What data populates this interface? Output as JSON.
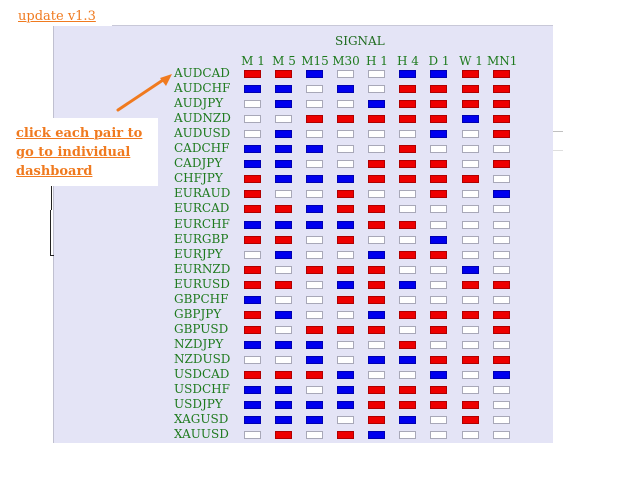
{
  "update_link": "update v1.3",
  "signal_title": "SIGNAL",
  "callout": {
    "lines": [
      "click each pair to",
      "go to individual",
      "dashboard"
    ]
  },
  "colors": {
    "buy": "#0000ee",
    "sell": "#ee0000",
    "neutral": "#ffffff",
    "panel_bg": "#e4e4f6",
    "label_green": "#1e7a1e",
    "accent_orange": "#f07a1f"
  },
  "timeframes": [
    "M 1",
    "M 5",
    "M15",
    "M30",
    "H 1",
    "H 4",
    "D 1",
    "W 1",
    "MN1"
  ],
  "pairs": [
    {
      "name": "AUDCAD",
      "signals": [
        "sell",
        "sell",
        "buy",
        "neutral",
        "neutral",
        "buy",
        "buy",
        "sell",
        "sell"
      ]
    },
    {
      "name": "AUDCHF",
      "signals": [
        "buy",
        "buy",
        "neutral",
        "buy",
        "neutral",
        "sell",
        "sell",
        "sell",
        "sell"
      ]
    },
    {
      "name": "AUDJPY",
      "signals": [
        "neutral",
        "buy",
        "neutral",
        "neutral",
        "buy",
        "sell",
        "sell",
        "sell",
        "sell"
      ]
    },
    {
      "name": "AUDNZD",
      "signals": [
        "neutral",
        "neutral",
        "sell",
        "sell",
        "sell",
        "sell",
        "sell",
        "buy",
        "sell"
      ]
    },
    {
      "name": "AUDUSD",
      "signals": [
        "neutral",
        "buy",
        "neutral",
        "neutral",
        "neutral",
        "neutral",
        "buy",
        "neutral",
        "sell"
      ]
    },
    {
      "name": "CADCHF",
      "signals": [
        "buy",
        "buy",
        "buy",
        "neutral",
        "neutral",
        "sell",
        "neutral",
        "neutral",
        "neutral"
      ]
    },
    {
      "name": "CADJPY",
      "signals": [
        "buy",
        "buy",
        "neutral",
        "neutral",
        "sell",
        "sell",
        "sell",
        "neutral",
        "sell"
      ]
    },
    {
      "name": "CHFJPY",
      "signals": [
        "sell",
        "buy",
        "buy",
        "buy",
        "sell",
        "sell",
        "sell",
        "sell",
        "neutral"
      ]
    },
    {
      "name": "EURAUD",
      "signals": [
        "sell",
        "neutral",
        "neutral",
        "sell",
        "neutral",
        "neutral",
        "sell",
        "neutral",
        "buy"
      ]
    },
    {
      "name": "EURCAD",
      "signals": [
        "sell",
        "sell",
        "buy",
        "sell",
        "sell",
        "neutral",
        "neutral",
        "neutral",
        "neutral"
      ]
    },
    {
      "name": "EURCHF",
      "signals": [
        "buy",
        "buy",
        "buy",
        "buy",
        "sell",
        "sell",
        "neutral",
        "neutral",
        "neutral"
      ]
    },
    {
      "name": "EURGBP",
      "signals": [
        "sell",
        "sell",
        "neutral",
        "sell",
        "neutral",
        "neutral",
        "buy",
        "neutral",
        "neutral"
      ]
    },
    {
      "name": "EURJPY",
      "signals": [
        "neutral",
        "buy",
        "neutral",
        "neutral",
        "buy",
        "sell",
        "sell",
        "neutral",
        "neutral"
      ]
    },
    {
      "name": "EURNZD",
      "signals": [
        "sell",
        "neutral",
        "sell",
        "sell",
        "sell",
        "neutral",
        "neutral",
        "buy",
        "neutral"
      ]
    },
    {
      "name": "EURUSD",
      "signals": [
        "sell",
        "sell",
        "neutral",
        "buy",
        "sell",
        "buy",
        "neutral",
        "sell",
        "sell"
      ]
    },
    {
      "name": "GBPCHF",
      "signals": [
        "buy",
        "neutral",
        "neutral",
        "sell",
        "sell",
        "neutral",
        "neutral",
        "neutral",
        "neutral"
      ]
    },
    {
      "name": "GBPJPY",
      "signals": [
        "sell",
        "buy",
        "neutral",
        "neutral",
        "buy",
        "sell",
        "sell",
        "sell",
        "sell"
      ]
    },
    {
      "name": "GBPUSD",
      "signals": [
        "sell",
        "neutral",
        "sell",
        "sell",
        "sell",
        "neutral",
        "sell",
        "neutral",
        "sell"
      ]
    },
    {
      "name": "NZDJPY",
      "signals": [
        "buy",
        "buy",
        "buy",
        "neutral",
        "neutral",
        "sell",
        "neutral",
        "neutral",
        "neutral"
      ]
    },
    {
      "name": "NZDUSD",
      "signals": [
        "neutral",
        "neutral",
        "buy",
        "neutral",
        "buy",
        "buy",
        "sell",
        "sell",
        "sell"
      ]
    },
    {
      "name": "USDCAD",
      "signals": [
        "sell",
        "sell",
        "sell",
        "buy",
        "neutral",
        "neutral",
        "buy",
        "neutral",
        "buy"
      ]
    },
    {
      "name": "USDCHF",
      "signals": [
        "buy",
        "buy",
        "neutral",
        "buy",
        "sell",
        "sell",
        "sell",
        "neutral",
        "neutral"
      ]
    },
    {
      "name": "USDJPY",
      "signals": [
        "buy",
        "buy",
        "buy",
        "buy",
        "sell",
        "sell",
        "sell",
        "sell",
        "neutral"
      ]
    },
    {
      "name": "XAGUSD",
      "signals": [
        "buy",
        "buy",
        "buy",
        "neutral",
        "sell",
        "buy",
        "neutral",
        "sell",
        "neutral"
      ]
    },
    {
      "name": "XAUUSD",
      "signals": [
        "neutral",
        "sell",
        "neutral",
        "sell",
        "buy",
        "neutral",
        "neutral",
        "neutral",
        "neutral"
      ]
    }
  ]
}
